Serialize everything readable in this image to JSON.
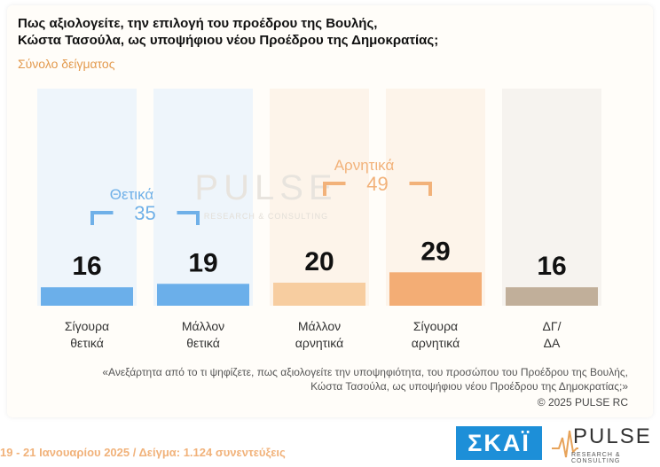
{
  "title_line1": "Πως αξιολογείτε, την επιλογή του προέδρου της Βουλής,",
  "title_line2": "Κώστα Τασούλα, ως υποψήφιου νέου Προέδρου της Δημοκρατίας;",
  "subtitle": "Σύνολο δείγματος",
  "chart_data": {
    "type": "bar",
    "title": "Πως αξιολογείτε, την επιλογή του προέδρου της Βουλής, Κώστα Τασούλα, ως υποψήφιου νέου Προέδρου της Δημοκρατίας;",
    "subtitle": "Σύνολο δείγματος",
    "categories": [
      [
        "Σίγουρα",
        "θετικά"
      ],
      [
        "Μάλλον",
        "θετικά"
      ],
      [
        "Μάλλον",
        "αρνητικά"
      ],
      [
        "Σίγουρα",
        "αρνητικά"
      ],
      [
        "ΔΓ/",
        "ΔΑ"
      ]
    ],
    "values": [
      16,
      19,
      20,
      29,
      16
    ],
    "ylim": [
      0,
      100
    ],
    "colors": [
      "#5fa8e8",
      "#5fa8e8",
      "#f6c999",
      "#f2a66a",
      "#bca993"
    ],
    "column_colors": [
      "#eef5fb",
      "#eef5fb",
      "#fdf4ea",
      "#fdf4ea",
      "#f6f3ef"
    ],
    "groups": [
      {
        "label": "Θετικά",
        "value": "35",
        "from": 0,
        "to": 1,
        "color": "#6fb0e8"
      },
      {
        "label": "Αρνητικά",
        "value": "49",
        "from": 2,
        "to": 3,
        "color": "#f2b27a"
      }
    ]
  },
  "watermark": {
    "word": "PULSE",
    "tagline": "RESEARCH & CONSULTING"
  },
  "footnote_line1": "«Ανεξάρτητα από το τι ψηφίζετε, πως αξιολογείτε την υποψηφιότητα, του προσώπου του Προέδρου της Βουλής,",
  "footnote_line2": "Κώστα Τασούλα, ως υποψήφιου νέου Προέδρου της Δημοκρατίας;»",
  "copyright": "©  2025  PULSE RC",
  "fieldwork": "19 - 21 Ιανουαρίου 2025  /  Δείγμα:  1.124 συνεντεύξεις",
  "skai_logo": "ΣΚΑΪ",
  "pulse_logo": {
    "word": "PULSE",
    "tagline": "RESEARCH & CONSULTING"
  }
}
